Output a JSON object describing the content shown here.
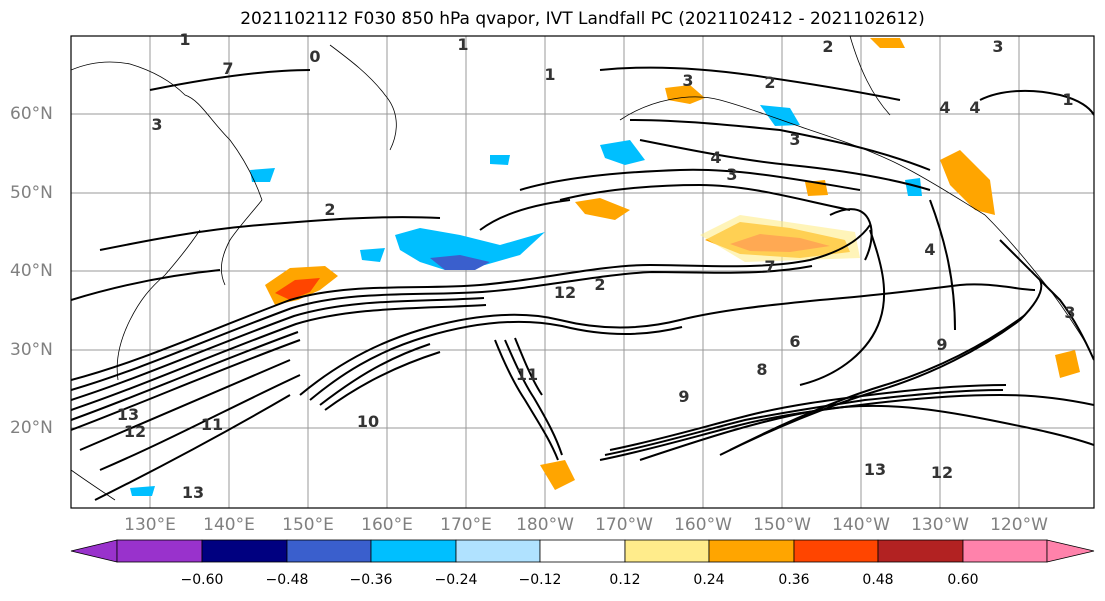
{
  "title": "2021102112 F030 850 hPa qvapor, IVT Landfall PC (2021102412 - 2021102612)",
  "lat_labels": [
    "60°N",
    "50°N",
    "40°N",
    "30°N",
    "20°N"
  ],
  "lon_labels": [
    "130°E",
    "140°E",
    "150°E",
    "160°E",
    "170°E",
    "180°W",
    "170°W",
    "160°W",
    "150°W",
    "140°W",
    "130°W",
    "120°W"
  ],
  "colorbar": {
    "colors": [
      "#9932cc",
      "#000080",
      "#3a5fcd",
      "#00bfff",
      "#b0e2ff",
      "#ffffff",
      "#ffec8b",
      "#ffa500",
      "#ff4500",
      "#b22222",
      "#ff82ab"
    ],
    "ticks": [
      "−0.60",
      "−0.48",
      "−0.36",
      "−0.24",
      "−0.12",
      "0.12",
      "0.24",
      "0.36",
      "0.48",
      "0.60"
    ]
  },
  "contour_labels": [
    {
      "t": "1"
    },
    {
      "t": "0"
    },
    {
      "t": "1"
    },
    {
      "t": "2"
    },
    {
      "t": "3"
    },
    {
      "t": "1"
    },
    {
      "t": "3"
    },
    {
      "t": "2"
    },
    {
      "t": "4"
    },
    {
      "t": "4"
    },
    {
      "t": "1"
    },
    {
      "t": "3"
    },
    {
      "t": "4"
    },
    {
      "t": "3"
    },
    {
      "t": "3"
    },
    {
      "t": "2"
    },
    {
      "t": "2"
    },
    {
      "t": "12"
    },
    {
      "t": "7"
    },
    {
      "t": "12"
    },
    {
      "t": "13"
    },
    {
      "t": "11"
    },
    {
      "t": "10"
    },
    {
      "t": "13"
    },
    {
      "t": "11"
    },
    {
      "t": "8"
    },
    {
      "t": "6"
    },
    {
      "t": "9"
    },
    {
      "t": "12"
    },
    {
      "t": "13"
    },
    {
      "t": "3"
    },
    {
      "t": "9"
    },
    {
      "t": "4"
    },
    {
      "t": "7"
    }
  ]
}
